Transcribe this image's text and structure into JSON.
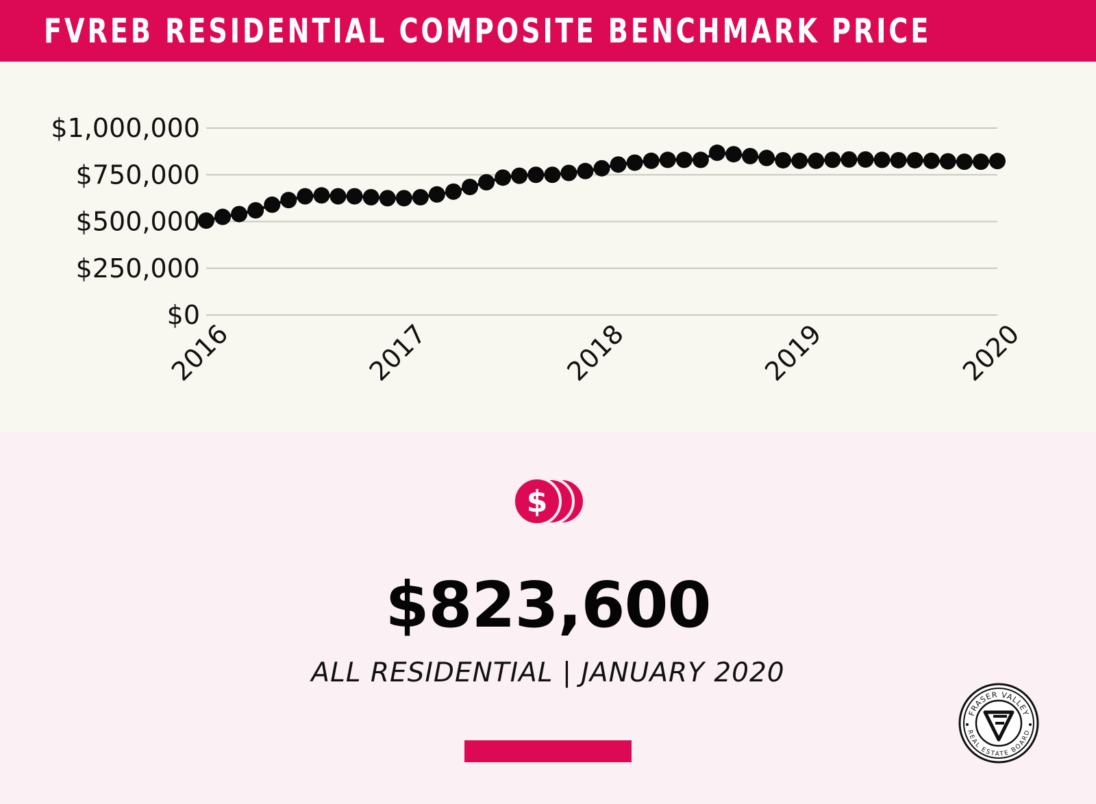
{
  "header": {
    "title": "FVREB RESIDENTIAL COMPOSITE BENCHMARK PRICE"
  },
  "colors": {
    "accent": "#dc0a55",
    "chart_bg": "#f8f7f0",
    "page_bg": "#fbf0f3",
    "marker": "#0a0a0a",
    "grid": "#c9c9c2"
  },
  "chart_data": {
    "type": "line",
    "title": "",
    "xlabel": "",
    "ylabel": "",
    "ylim": [
      0,
      1000000
    ],
    "xlim": [
      "2016-01",
      "2020-01"
    ],
    "y_ticks": [
      0,
      250000,
      500000,
      750000,
      1000000
    ],
    "y_tick_labels": [
      "$0",
      "$250,000",
      "$500,000",
      "$750,000",
      "$1,000,000"
    ],
    "x_ticks": [
      "2016-01",
      "2017-01",
      "2018-01",
      "2019-01",
      "2020-01"
    ],
    "x_tick_labels": [
      "2016",
      "2017",
      "2018",
      "2019",
      "2020"
    ],
    "grid": true,
    "markers": true,
    "series": [
      {
        "x": [
          "2016-01",
          "2016-02",
          "2016-03",
          "2016-04",
          "2016-05",
          "2016-06",
          "2016-07",
          "2016-08",
          "2016-09",
          "2016-10",
          "2016-11",
          "2016-12",
          "2017-01",
          "2017-02",
          "2017-03",
          "2017-04",
          "2017-05",
          "2017-06",
          "2017-07",
          "2017-08",
          "2017-09",
          "2017-10",
          "2017-11",
          "2017-12",
          "2018-01",
          "2018-02",
          "2018-03",
          "2018-04",
          "2018-05",
          "2018-06",
          "2018-07",
          "2018-08",
          "2018-09",
          "2018-10",
          "2018-11",
          "2018-12",
          "2019-01",
          "2019-02",
          "2019-03",
          "2019-04",
          "2019-05",
          "2019-06",
          "2019-07",
          "2019-08",
          "2019-09",
          "2019-10",
          "2019-11",
          "2019-12",
          "2020-01"
        ],
        "values": [
          505000,
          525000,
          540000,
          560000,
          590000,
          615000,
          635000,
          640000,
          635000,
          635000,
          630000,
          625000,
          625000,
          630000,
          645000,
          660000,
          685000,
          710000,
          735000,
          745000,
          750000,
          750000,
          760000,
          770000,
          785000,
          805000,
          815000,
          825000,
          830000,
          830000,
          830000,
          868000,
          860000,
          850000,
          840000,
          828000,
          825000,
          825000,
          830000,
          832000,
          832000,
          830000,
          828000,
          828000,
          825000,
          822000,
          820000,
          820000,
          823600
        ]
      }
    ]
  },
  "summary": {
    "value": "$823,600",
    "caption": "ALL RESIDENTIAL | JANUARY 2020"
  },
  "logo": {
    "top_text": "FRASER VALLEY",
    "bottom_text": "REAL ESTATE BOARD"
  }
}
